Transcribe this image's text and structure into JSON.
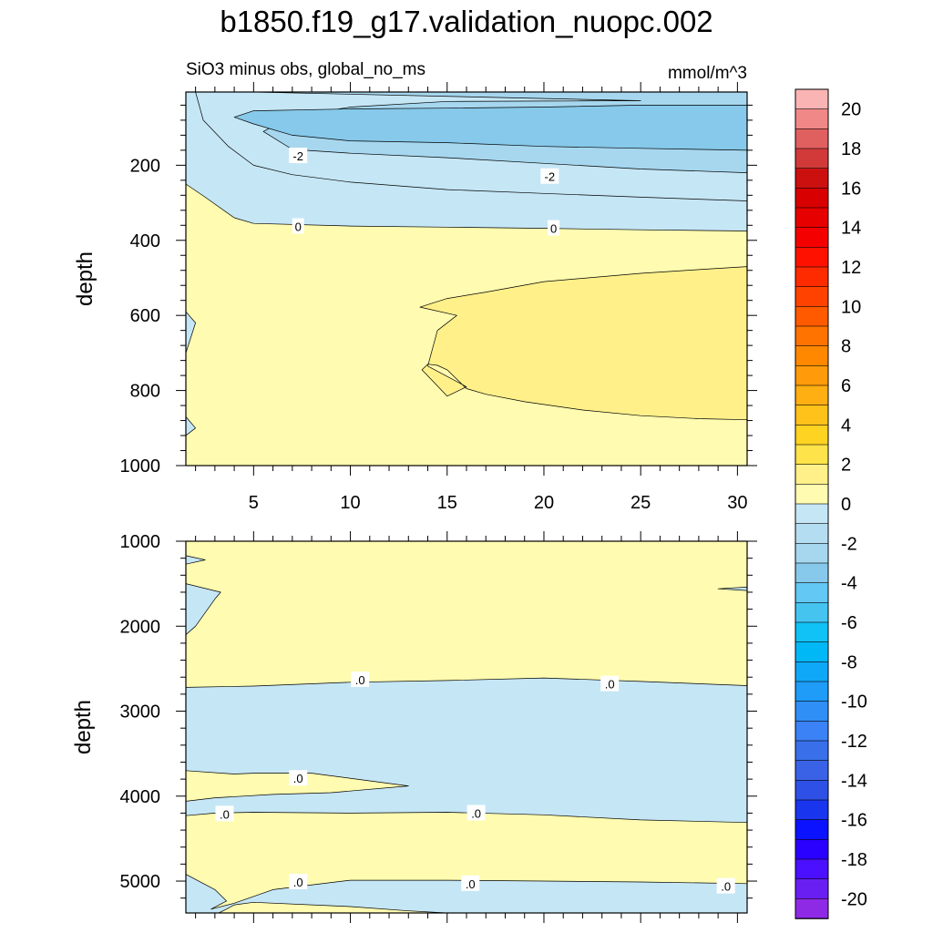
{
  "title": "b1850.f19_g17.validation_nuopc.002",
  "colors": {
    "pos_light": "#fffbb0",
    "pos_mid": "#fff08a",
    "neg_1": "#c5e6f5",
    "neg_2": "#a6d7ef",
    "neg_3": "#86c9ea",
    "contour": "#000000"
  },
  "chart_data": [
    {
      "type": "contour",
      "panel": "top",
      "subtitle": "SiO3 minus obs, global_no_ms",
      "units": "mmol/m^3",
      "xlabel": "",
      "ylabel": "depth",
      "xlim": [
        1.5,
        30.5
      ],
      "ylim": [
        1000,
        5
      ],
      "yreversed": true,
      "xticks": [
        5,
        10,
        15,
        20,
        25,
        30
      ],
      "xtick_labels": [
        "5",
        "10",
        "15",
        "20",
        "25",
        "30"
      ],
      "yticks": [
        200,
        400,
        600,
        800,
        1000
      ],
      "ytick_labels": [
        "200",
        "400",
        "600",
        "800",
        "1000"
      ],
      "regions": [
        {
          "value": 0.5,
          "points": [
            [
              1.5,
              5
            ],
            [
              30.5,
              5
            ],
            [
              30.5,
              1000
            ],
            [
              1.5,
              1000
            ]
          ]
        },
        {
          "value": -0.5,
          "points": [
            [
              1.5,
              5
            ],
            [
              30.5,
              5
            ],
            [
              30.5,
              375
            ],
            [
              25,
              372
            ],
            [
              20,
              368
            ],
            [
              15,
              365
            ],
            [
              10,
              362
            ],
            [
              5,
              355
            ],
            [
              4,
              340
            ],
            [
              2.5,
              285
            ],
            [
              1.5,
              250
            ]
          ]
        },
        {
          "value": -1.5,
          "points": [
            [
              2,
              5
            ],
            [
              30.5,
              5
            ],
            [
              30.5,
              295
            ],
            [
              25,
              285
            ],
            [
              20,
              275
            ],
            [
              15,
              265
            ],
            [
              10,
              245
            ],
            [
              7,
              225
            ],
            [
              5,
              200
            ],
            [
              3.7,
              150
            ],
            [
              2.4,
              80
            ]
          ]
        },
        {
          "value": -2.5,
          "points": [
            [
              5,
              5
            ],
            [
              30.5,
              5
            ],
            [
              30.5,
              220
            ],
            [
              25,
              210
            ],
            [
              20,
              195
            ],
            [
              15,
              180
            ],
            [
              10,
              168
            ],
            [
              7,
              158
            ],
            [
              5.5,
              110
            ],
            [
              7,
              70
            ],
            [
              10,
              45
            ],
            [
              15,
              30
            ],
            [
              25,
              28
            ]
          ]
        },
        {
          "value": -3.5,
          "points": [
            [
              5,
              55
            ],
            [
              10,
              50
            ],
            [
              15,
              48
            ],
            [
              20,
              45
            ],
            [
              25,
              40
            ],
            [
              30.5,
              40
            ],
            [
              30.5,
              160
            ],
            [
              25,
              155
            ],
            [
              20,
              150
            ],
            [
              15,
              140
            ],
            [
              10,
              135
            ],
            [
              7,
              120
            ],
            [
              5,
              90
            ],
            [
              4,
              72
            ]
          ]
        },
        {
          "value": 1.5,
          "points": [
            [
              30.5,
              470
            ],
            [
              30.5,
              878
            ],
            [
              28,
              875
            ],
            [
              25,
              867
            ],
            [
              22,
              852
            ],
            [
              19,
              830
            ],
            [
              17,
              810
            ],
            [
              16,
              795
            ],
            [
              15,
              745
            ],
            [
              14.5,
              733
            ],
            [
              14.0,
              730
            ],
            [
              13.7,
              745
            ],
            [
              15,
              815
            ],
            [
              16,
              790
            ],
            [
              14,
              735
            ],
            [
              14.5,
              640
            ],
            [
              15.5,
              600
            ],
            [
              13.6,
              578
            ],
            [
              15,
              555
            ],
            [
              17,
              538
            ],
            [
              20,
              510
            ],
            [
              25,
              488
            ],
            [
              28,
              478
            ]
          ]
        },
        {
          "value": -0.5,
          "points": [
            [
              1.5,
              590
            ],
            [
              2.0,
              620
            ],
            [
              1.5,
              700
            ]
          ]
        },
        {
          "value": -0.5,
          "points": [
            [
              1.5,
              870
            ],
            [
              2.0,
              900
            ],
            [
              1.5,
              920
            ]
          ]
        }
      ],
      "contour_labels": [
        {
          "x": 7.3,
          "y": 175,
          "text": "-2"
        },
        {
          "x": 20.3,
          "y": 230,
          "text": "-2"
        },
        {
          "x": 7.3,
          "y": 363,
          "text": "0"
        },
        {
          "x": 20.5,
          "y": 368,
          "text": "0"
        }
      ]
    },
    {
      "type": "contour",
      "panel": "bottom",
      "subtitle": "",
      "xlabel": "",
      "ylabel": "depth",
      "xlim": [
        1.5,
        30.5
      ],
      "ylim": [
        5375,
        1000
      ],
      "yreversed": true,
      "xticks": [
        5,
        10,
        15,
        20,
        25,
        30
      ],
      "yticks": [
        1000,
        2000,
        3000,
        4000,
        5000
      ],
      "ytick_labels": [
        "1000",
        "2000",
        "3000",
        "4000",
        "5000"
      ],
      "regions": [
        {
          "value": 0.5,
          "points": [
            [
              1.5,
              1000
            ],
            [
              30.5,
              1000
            ],
            [
              30.5,
              5375
            ],
            [
              1.5,
              5375
            ]
          ]
        },
        {
          "value": -0.5,
          "points": [
            [
              1.5,
              1170
            ],
            [
              2.5,
              1220
            ],
            [
              1.5,
              1270
            ]
          ]
        },
        {
          "value": -0.5,
          "points": [
            [
              1.5,
              1500
            ],
            [
              3.3,
              1600
            ],
            [
              3.0,
              1680
            ],
            [
              2.0,
              2000
            ],
            [
              1.5,
              2100
            ]
          ]
        },
        {
          "value": -0.5,
          "points": [
            [
              30.5,
              1540
            ],
            [
              30.5,
              1580
            ],
            [
              29,
              1560
            ]
          ]
        },
        {
          "value": -0.5,
          "points": [
            [
              1.5,
              2720
            ],
            [
              5,
              2705
            ],
            [
              10,
              2660
            ],
            [
              15,
              2640
            ],
            [
              20,
              2610
            ],
            [
              25,
              2650
            ],
            [
              30.5,
              2700
            ],
            [
              30.5,
              4310
            ],
            [
              25,
              4280
            ],
            [
              20,
              4220
            ],
            [
              15,
              4190
            ],
            [
              10,
              4200
            ],
            [
              5,
              4190
            ],
            [
              3,
              4200
            ],
            [
              1.5,
              4230
            ]
          ]
        },
        {
          "value": 0.5,
          "points": [
            [
              1.5,
              3700
            ],
            [
              4,
              3740
            ],
            [
              5,
              3730
            ],
            [
              8,
              3730
            ],
            [
              13,
              3880
            ],
            [
              9,
              3960
            ],
            [
              6,
              3980
            ],
            [
              3,
              4020
            ],
            [
              1.5,
              4060
            ]
          ]
        },
        {
          "value": -0.5,
          "points": [
            [
              1.5,
              4920
            ],
            [
              3,
              5100
            ],
            [
              3.6,
              5235
            ],
            [
              2.8,
              5330
            ],
            [
              4,
              5260
            ],
            [
              6,
              5100
            ],
            [
              10,
              4990
            ],
            [
              15,
              4990
            ],
            [
              20,
              5000
            ],
            [
              25,
              5010
            ],
            [
              30.5,
              5030
            ],
            [
              30.5,
              5375
            ],
            [
              15,
              5375
            ],
            [
              13,
              5350
            ],
            [
              10,
              5300
            ],
            [
              5,
              5250
            ],
            [
              4,
              5280
            ],
            [
              3.6,
              5330
            ],
            [
              3.2,
              5375
            ],
            [
              1.5,
              5375
            ]
          ]
        }
      ],
      "contour_labels": [
        {
          "x": 10.5,
          "y": 2630,
          "text": ".0"
        },
        {
          "x": 23.4,
          "y": 2680,
          "text": ".0"
        },
        {
          "x": 7.3,
          "y": 3790,
          "text": ".0"
        },
        {
          "x": 3.5,
          "y": 4210,
          "text": ".0"
        },
        {
          "x": 16.5,
          "y": 4200,
          "text": ".0"
        },
        {
          "x": 7.3,
          "y": 5010,
          "text": ".0"
        },
        {
          "x": 16.2,
          "y": 5030,
          "text": ".0"
        },
        {
          "x": 29.4,
          "y": 5060,
          "text": ".0"
        }
      ]
    }
  ],
  "colorbar": {
    "levels": [
      -21,
      -20,
      -19,
      -18,
      -17,
      -16,
      -15,
      -14,
      -13,
      -12,
      -11,
      -10,
      -9,
      -8,
      -7,
      -6,
      -5,
      -4,
      -3,
      -2,
      -1,
      0,
      1,
      2,
      3,
      4,
      5,
      6,
      7,
      8,
      9,
      10,
      11,
      12,
      13,
      14,
      15,
      16,
      17,
      18,
      19,
      20,
      21
    ],
    "colors": [
      "#8e2ae6",
      "#6a1ff2",
      "#4a10ff",
      "#2a00ff",
      "#0a12ff",
      "#1a35ee",
      "#2e50e6",
      "#3a62e6",
      "#3970ea",
      "#3b82f6",
      "#2f8ff7",
      "#1e9cf8",
      "#0fa8f8",
      "#00b8f6",
      "#10c2f5",
      "#46c4f0",
      "#63c8f3",
      "#86c9ea",
      "#a6d7ef",
      "#b5ddf2",
      "#c5e6f5",
      "#fffbb0",
      "#fff08a",
      "#ffe34a",
      "#ffd322",
      "#ffc21a",
      "#ffaf12",
      "#ff9a0a",
      "#ff8800",
      "#ff7300",
      "#ff5a00",
      "#ff4200",
      "#ff2b00",
      "#ff1100",
      "#f50000",
      "#e60000",
      "#d80000",
      "#cc1010",
      "#d23a3a",
      "#e06060",
      "#f08888",
      "#fbb4b4"
    ],
    "labels": [
      "20",
      "18",
      "16",
      "14",
      "12",
      "10",
      "8",
      "6",
      "4",
      "2",
      "0",
      "-2",
      "-4",
      "-6",
      "-8",
      "-10",
      "-12",
      "-14",
      "-16",
      "-18",
      "-20"
    ],
    "label_values": [
      20,
      18,
      16,
      14,
      12,
      10,
      8,
      6,
      4,
      2,
      0,
      -2,
      -4,
      -6,
      -8,
      -10,
      -12,
      -14,
      -16,
      -18,
      -20
    ]
  }
}
